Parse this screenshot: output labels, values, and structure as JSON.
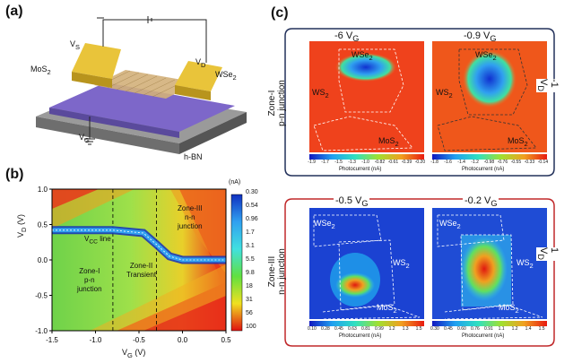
{
  "panels": {
    "a": {
      "label": "(a)",
      "device": {
        "vs": "V",
        "vs_sub": "S",
        "vd": "V",
        "vd_sub": "D",
        "vg": "V",
        "vg_sub": "G",
        "mos2": "MoS",
        "mos2_sub": "2",
        "wse2": "WSe",
        "wse2_sub": "2",
        "hbn": "h-BN"
      }
    },
    "b": {
      "label": "(b)",
      "colorbar_unit": "(nA)",
      "colorbar_ticks": [
        "0.30",
        "0.54",
        "0.96",
        "1.7",
        "3.1",
        "5.5",
        "9.8",
        "18",
        "31",
        "56",
        "100"
      ],
      "zones": {
        "vcc_line": "V",
        "vcc_sub": "CC",
        "vcc_tail": " line",
        "zone1": [
          "Zone-I",
          "p-n",
          "junction"
        ],
        "zone2": [
          "Zone-II",
          "Transient"
        ],
        "zone3": [
          "Zone-III",
          "n-n",
          "junction"
        ]
      }
    },
    "c": {
      "label": "(c)",
      "top_label": [
        "Zone-I",
        "p-n junction"
      ],
      "bottom_label": [
        "Zone-III",
        "n-n junction"
      ],
      "right_top": "-1 V",
      "right_top_sub": "D",
      "right_bottom": "1 V",
      "right_bottom_sub": "D",
      "maps": [
        {
          "vg": "-6 V",
          "vg_sub": "G",
          "ticks": [
            "-1.9",
            "-1.7",
            "-1.5",
            "-1.3",
            "-1.0",
            "-0.82",
            "-0.61",
            "-0.39",
            "-0.20"
          ],
          "xlabel": "Photocurrent (nA)"
        },
        {
          "vg": "-0.9 V",
          "vg_sub": "G",
          "ticks": [
            "-1.8",
            "-1.6",
            "-1.4",
            "-1.2",
            "-0.98",
            "-0.76",
            "-0.55",
            "-0.33",
            "-0.14"
          ],
          "xlabel": "Photocurrent (nA)"
        },
        {
          "vg": "-0.5 V",
          "vg_sub": "G",
          "ticks": [
            "0.10",
            "0.28",
            "0.45",
            "0.63",
            "0.81",
            "0.99",
            "1.2",
            "1.3",
            "1.5"
          ],
          "xlabel": "Photocurrent (nA)"
        },
        {
          "vg": "-0.2 V",
          "vg_sub": "G",
          "ticks": [
            "0.30",
            "0.45",
            "0.60",
            "0.76",
            "0.91",
            "1.1",
            "1.2",
            "1.4",
            "1.5"
          ],
          "xlabel": "Photocurrent (nA)"
        }
      ],
      "map_labels": {
        "wse2": "WSe",
        "ws2": "WS",
        "mos2": "MoS",
        "sub2": "2"
      }
    }
  },
  "chart_data": {
    "type": "heatmap",
    "xlabel": "V",
    "xlabel_sub": "G",
    "xlabel_unit": " (V)",
    "ylabel": "V",
    "ylabel_sub": "D",
    "ylabel_unit": " (V)",
    "xlim": [
      -1.5,
      0.5
    ],
    "ylim": [
      -1.0,
      1.0
    ],
    "x_ticks": [
      "-1.5",
      "-1.0",
      "-0.5",
      "0.0",
      "0.5"
    ],
    "y_ticks": [
      "1.0",
      "0.5",
      "0.0",
      "-0.5",
      "-1.0"
    ],
    "zone_boundaries_vg": [
      -0.8,
      -0.3
    ],
    "vcc_line": [
      [
        -1.5,
        0.42
      ],
      [
        -0.8,
        0.42
      ],
      [
        -0.45,
        0.38
      ],
      [
        -0.3,
        0.22
      ],
      [
        -0.15,
        0.05
      ],
      [
        0.0,
        0.0
      ],
      [
        0.5,
        0.0
      ]
    ]
  }
}
